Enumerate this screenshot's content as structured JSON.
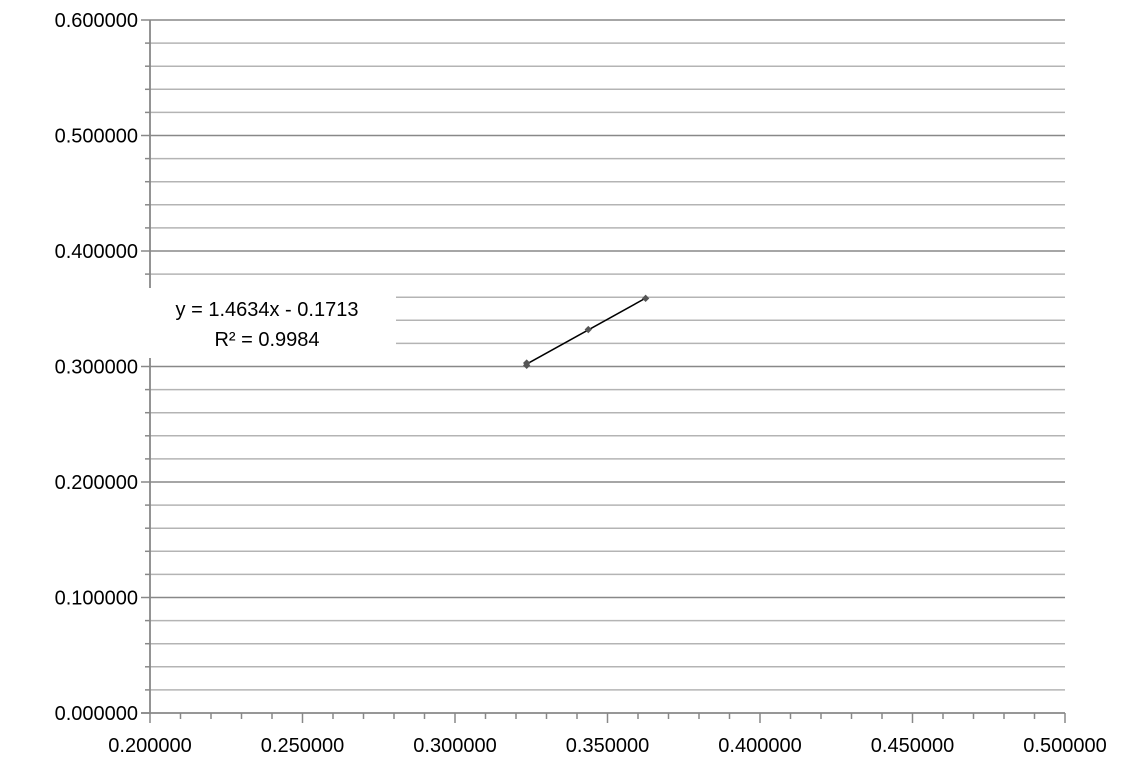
{
  "chart_data": {
    "type": "scatter",
    "title": "",
    "xlabel": "",
    "ylabel": "",
    "xlim": [
      0.2,
      0.5
    ],
    "ylim": [
      0.0,
      0.6
    ],
    "x_major_ticks": [
      0.2,
      0.25,
      0.3,
      0.35,
      0.4,
      0.45,
      0.5
    ],
    "x_tick_labels": [
      "0.200000",
      "0.250000",
      "0.300000",
      "0.350000",
      "0.400000",
      "0.450000",
      "0.500000"
    ],
    "x_minor_step": 0.01,
    "y_major_ticks": [
      0.0,
      0.1,
      0.2,
      0.3,
      0.4,
      0.5,
      0.6
    ],
    "y_tick_labels": [
      "0.000000",
      "0.100000",
      "0.200000",
      "0.300000",
      "0.400000",
      "0.500000",
      "0.600000"
    ],
    "y_minor_step": 0.02,
    "grid": true,
    "legend": "none",
    "series": [
      {
        "x": [
          0.3235,
          0.3235,
          0.3437,
          0.3625
        ],
        "y": [
          0.303,
          0.301,
          0.332,
          0.359
        ],
        "color": "#555555"
      }
    ],
    "trendline": {
      "type": "linear",
      "slope": 1.4634,
      "intercept": -0.1713,
      "x_range": [
        0.3235,
        0.3625
      ],
      "color": "#000000",
      "equation_text": "y = 1.4634x - 0.1713",
      "r2_text": "R² = 0.9984"
    },
    "colors": {
      "axis": "#888888",
      "major_grid": "#888888",
      "minor_grid": "#b4b4b4"
    }
  }
}
